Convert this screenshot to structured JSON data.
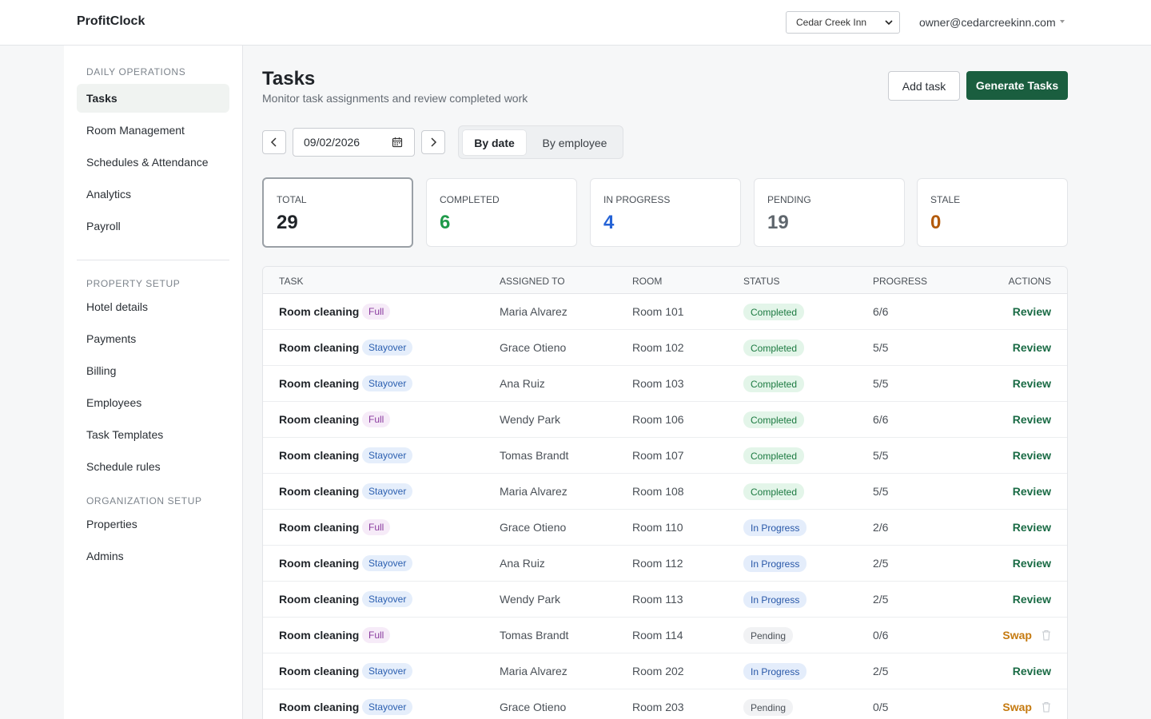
{
  "app": {
    "brand": "ProfitClock"
  },
  "header": {
    "property_select": "Cedar Creek Inn",
    "user_email": "owner@cedarcreekinn.com"
  },
  "sidebar": {
    "sections": [
      {
        "title": "DAILY OPERATIONS",
        "items": [
          "Tasks",
          "Room Management",
          "Schedules & Attendance",
          "Analytics",
          "Payroll"
        ]
      },
      {
        "title": "PROPERTY SETUP",
        "items": [
          "Hotel details",
          "Payments",
          "Billing",
          "Employees",
          "Task Templates",
          "Schedule rules"
        ]
      },
      {
        "title": "ORGANIZATION SETUP",
        "items": [
          "Properties",
          "Admins"
        ]
      }
    ],
    "active_item": "Tasks"
  },
  "page": {
    "title": "Tasks",
    "subtitle": "Monitor task assignments and review completed work",
    "add_task_label": "Add task",
    "generate_label": "Generate Tasks",
    "date_value": "09/02/2026",
    "view_modes": [
      "By date",
      "By employee"
    ],
    "active_view": "By date"
  },
  "stats": [
    {
      "label": "TOTAL",
      "value": "29",
      "color": "#1f2328"
    },
    {
      "label": "COMPLETED",
      "value": "6",
      "color": "#1f9a4a"
    },
    {
      "label": "IN PROGRESS",
      "value": "4",
      "color": "#2563d6"
    },
    {
      "label": "PENDING",
      "value": "19",
      "color": "#5f666d"
    },
    {
      "label": "STALE",
      "value": "0",
      "color": "#b35a0a"
    }
  ],
  "table": {
    "columns": [
      "TASK",
      "ASSIGNED TO",
      "ROOM",
      "STATUS",
      "PROGRESS",
      "ACTIONS"
    ],
    "rows": [
      {
        "task": "Room cleaning",
        "type": "Full",
        "assignee": "Maria Alvarez",
        "room": "Room 101",
        "status": "Completed",
        "progress": "6/6",
        "action": "Review"
      },
      {
        "task": "Room cleaning",
        "type": "Stayover",
        "assignee": "Grace Otieno",
        "room": "Room 102",
        "status": "Completed",
        "progress": "5/5",
        "action": "Review"
      },
      {
        "task": "Room cleaning",
        "type": "Stayover",
        "assignee": "Ana Ruiz",
        "room": "Room 103",
        "status": "Completed",
        "progress": "5/5",
        "action": "Review"
      },
      {
        "task": "Room cleaning",
        "type": "Full",
        "assignee": "Wendy Park",
        "room": "Room 106",
        "status": "Completed",
        "progress": "6/6",
        "action": "Review"
      },
      {
        "task": "Room cleaning",
        "type": "Stayover",
        "assignee": "Tomas Brandt",
        "room": "Room 107",
        "status": "Completed",
        "progress": "5/5",
        "action": "Review"
      },
      {
        "task": "Room cleaning",
        "type": "Stayover",
        "assignee": "Maria Alvarez",
        "room": "Room 108",
        "status": "Completed",
        "progress": "5/5",
        "action": "Review"
      },
      {
        "task": "Room cleaning",
        "type": "Full",
        "assignee": "Grace Otieno",
        "room": "Room 110",
        "status": "In Progress",
        "progress": "2/6",
        "action": "Review"
      },
      {
        "task": "Room cleaning",
        "type": "Stayover",
        "assignee": "Ana Ruiz",
        "room": "Room 112",
        "status": "In Progress",
        "progress": "2/5",
        "action": "Review"
      },
      {
        "task": "Room cleaning",
        "type": "Stayover",
        "assignee": "Wendy Park",
        "room": "Room 113",
        "status": "In Progress",
        "progress": "2/5",
        "action": "Review"
      },
      {
        "task": "Room cleaning",
        "type": "Full",
        "assignee": "Tomas Brandt",
        "room": "Room 114",
        "status": "Pending",
        "progress": "0/6",
        "action": "Swap"
      },
      {
        "task": "Room cleaning",
        "type": "Stayover",
        "assignee": "Maria Alvarez",
        "room": "Room 202",
        "status": "In Progress",
        "progress": "2/5",
        "action": "Review"
      },
      {
        "task": "Room cleaning",
        "type": "Stayover",
        "assignee": "Grace Otieno",
        "room": "Room 203",
        "status": "Pending",
        "progress": "0/5",
        "action": "Swap"
      }
    ]
  },
  "icons": {
    "prev": "chevron-left-icon",
    "next": "chevron-right-icon",
    "calendar": "calendar-icon",
    "trash": "trash-icon",
    "dropdown": "chevron-down-icon"
  }
}
